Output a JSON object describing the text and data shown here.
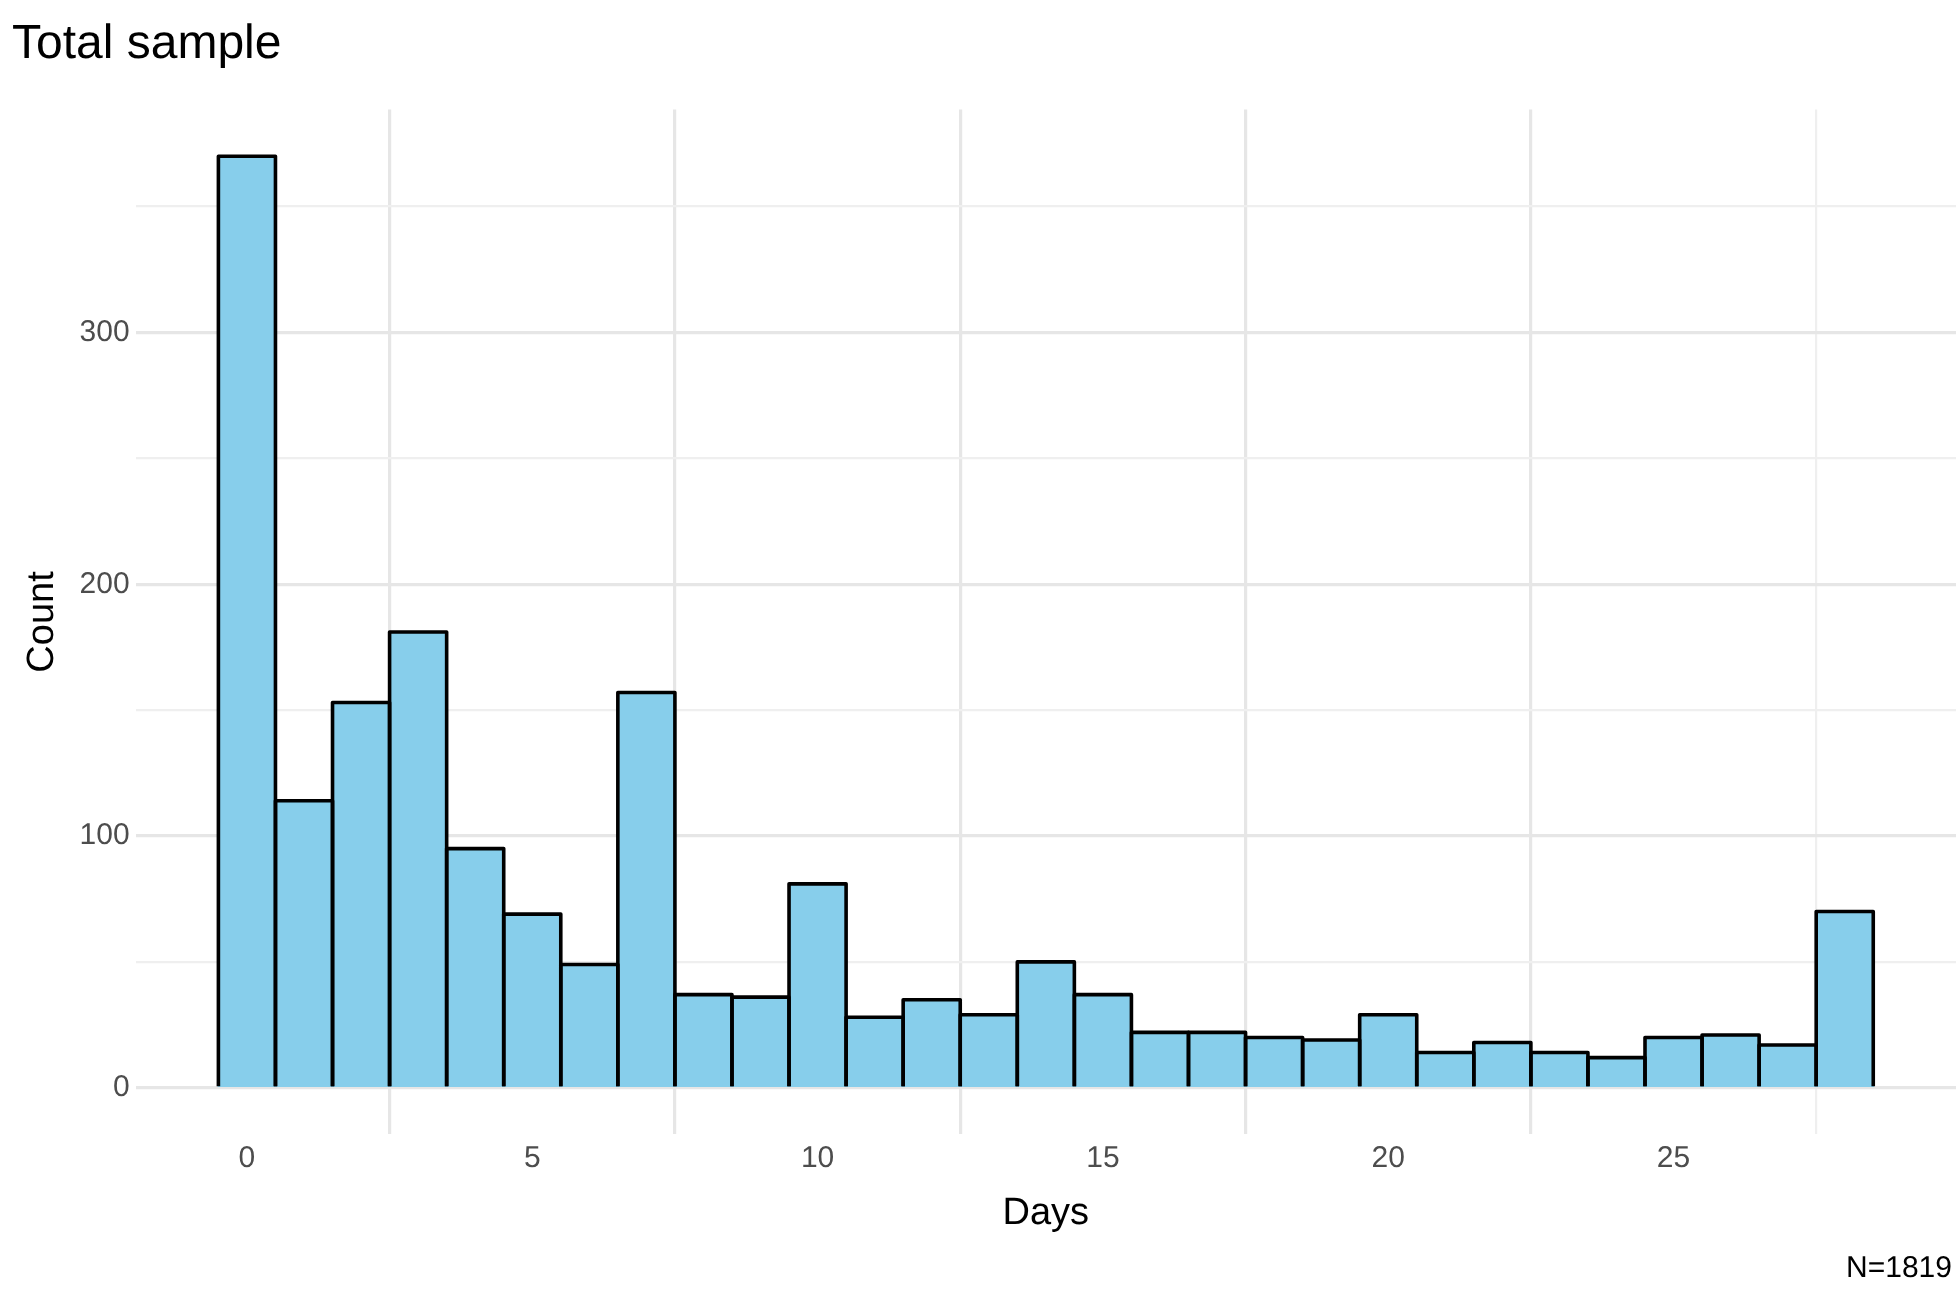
{
  "chart_data": {
    "type": "histogram",
    "title": "Total sample",
    "xlabel": "Days",
    "ylabel": "Count",
    "bins": [
      -0.5,
      0.5,
      1.5,
      2.5,
      3.5,
      4.5,
      5.5,
      6.5,
      7.5,
      8.5,
      9.5,
      10.5,
      11.5,
      12.5,
      13.5,
      14.5,
      15.5,
      16.5,
      17.5,
      18.5,
      19.5,
      20.5,
      21.5,
      22.5,
      23.5,
      24.5,
      25.5,
      26.5,
      27.5,
      28.5
    ],
    "values": [
      370,
      114,
      153,
      181,
      95,
      69,
      49,
      157,
      37,
      36,
      81,
      28,
      35,
      29,
      50,
      37,
      22,
      22,
      20,
      19,
      29,
      14,
      18,
      14,
      12,
      20,
      21,
      17,
      70
    ],
    "color": "#87ceeb",
    "xlim": [
      -1.95,
      29.95
    ],
    "xticks": [
      0,
      5,
      10,
      15,
      20,
      25
    ],
    "ylim": [
      -18.5,
      388.5
    ],
    "yticks": [
      0,
      {
        "value": 50,
        "label": null
      },
      100,
      {
        "value": 150,
        "label": null
      },
      200,
      {
        "value": 250,
        "label": null
      },
      300,
      {
        "value": 350,
        "label": null
      }
    ],
    "grid": true,
    "legend": false,
    "annotations": [
      "N=1819"
    ]
  }
}
